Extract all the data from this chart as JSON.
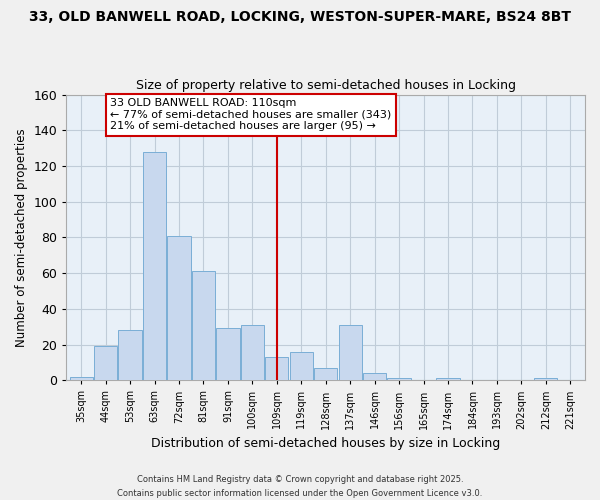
{
  "title1": "33, OLD BANWELL ROAD, LOCKING, WESTON-SUPER-MARE, BS24 8BT",
  "title2": "Size of property relative to semi-detached houses in Locking",
  "xlabel": "Distribution of semi-detached houses by size in Locking",
  "ylabel": "Number of semi-detached properties",
  "categories": [
    "35sqm",
    "44sqm",
    "53sqm",
    "63sqm",
    "72sqm",
    "81sqm",
    "91sqm",
    "100sqm",
    "109sqm",
    "119sqm",
    "128sqm",
    "137sqm",
    "146sqm",
    "156sqm",
    "165sqm",
    "174sqm",
    "184sqm",
    "193sqm",
    "202sqm",
    "212sqm",
    "221sqm"
  ],
  "values": [
    2,
    19,
    28,
    128,
    81,
    61,
    29,
    31,
    13,
    16,
    7,
    31,
    4,
    1,
    0,
    1,
    0,
    0,
    0,
    1,
    0
  ],
  "bar_color": "#c8d8ee",
  "bar_edge_color": "#7aaed6",
  "vline_color": "#cc0000",
  "annotation_line1": "33 OLD BANWELL ROAD: 110sqm",
  "annotation_line2": "← 77% of semi-detached houses are smaller (343)",
  "annotation_line3": "21% of semi-detached houses are larger (95) →",
  "annotation_box_color": "#ffffff",
  "annotation_box_edge_color": "#cc0000",
  "ylim": [
    0,
    160
  ],
  "yticks": [
    0,
    20,
    40,
    60,
    80,
    100,
    120,
    140,
    160
  ],
  "footer1": "Contains HM Land Registry data © Crown copyright and database right 2025.",
  "footer2": "Contains public sector information licensed under the Open Government Licence v3.0.",
  "plot_bg_color": "#e8f0f8",
  "fig_bg_color": "#f0f0f0",
  "grid_color": "#c0ccd8",
  "title1_fontsize": 10,
  "title2_fontsize": 9,
  "vline_cat_index": 8
}
